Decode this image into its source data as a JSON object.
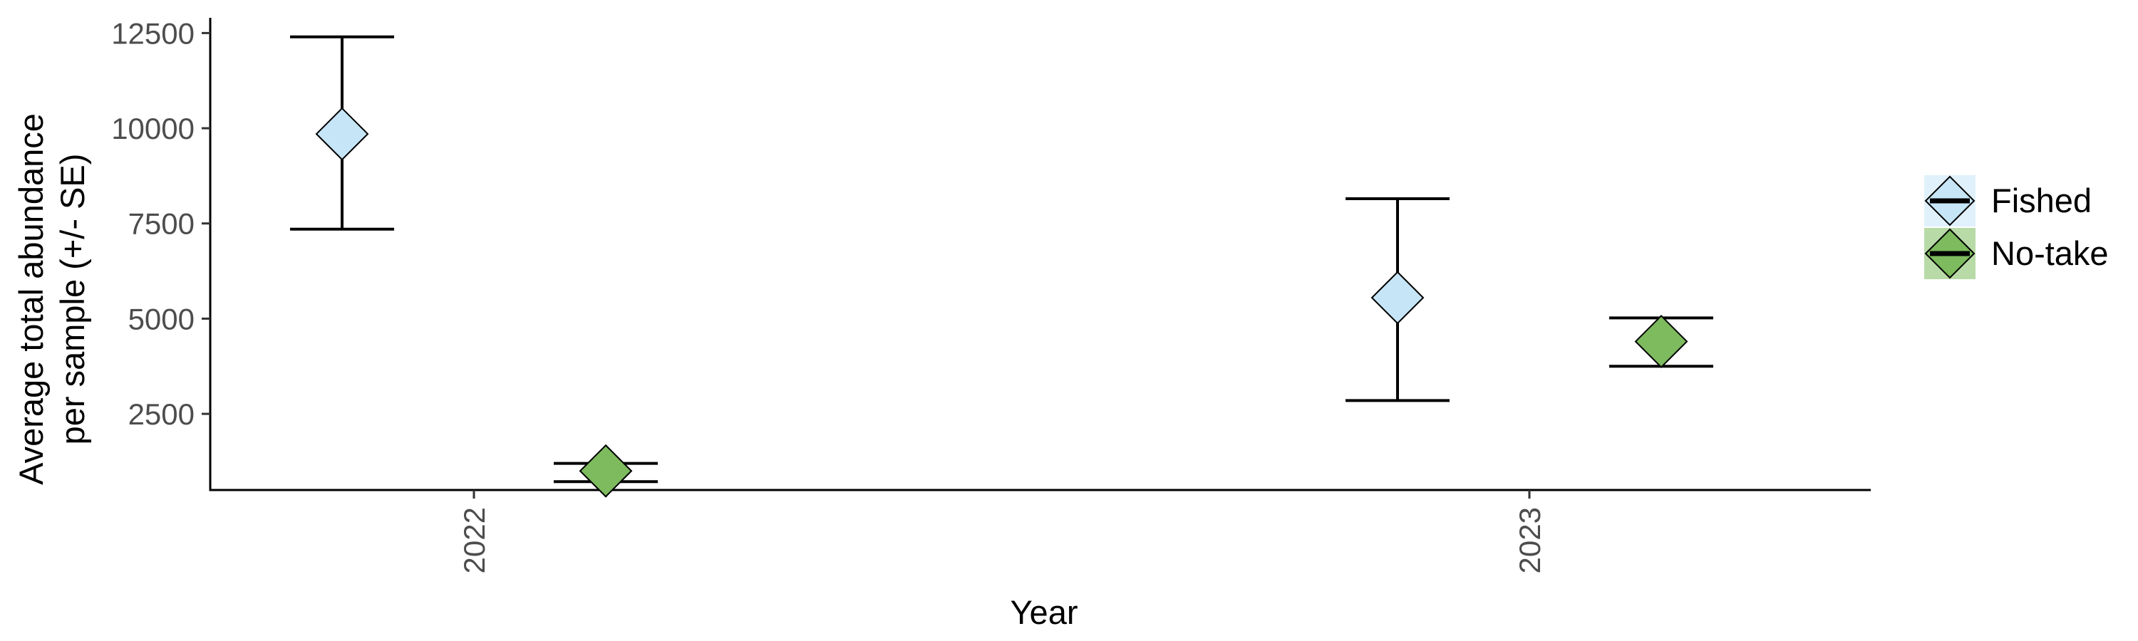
{
  "chart_data": {
    "type": "scatter",
    "title": "",
    "xlabel": "Year",
    "ylabel_lines": [
      "Average total abundance",
      "per sample (+/- SE)"
    ],
    "categories": [
      "2022",
      "2023"
    ],
    "yticks": [
      2500,
      5000,
      7500,
      10000,
      12500
    ],
    "ylim": [
      500,
      12900
    ],
    "legend_position": "right",
    "series": [
      {
        "name": "Fished",
        "color": "#c6e6f7",
        "values": [
          9850,
          5550
        ],
        "se_low": [
          7350,
          2850
        ],
        "se_high": [
          12400,
          8150
        ]
      },
      {
        "name": "No-take",
        "color": "#7dbb5e",
        "values": [
          1000,
          4400
        ],
        "se_low": [
          720,
          3750
        ],
        "se_high": [
          1200,
          5020
        ]
      }
    ]
  }
}
